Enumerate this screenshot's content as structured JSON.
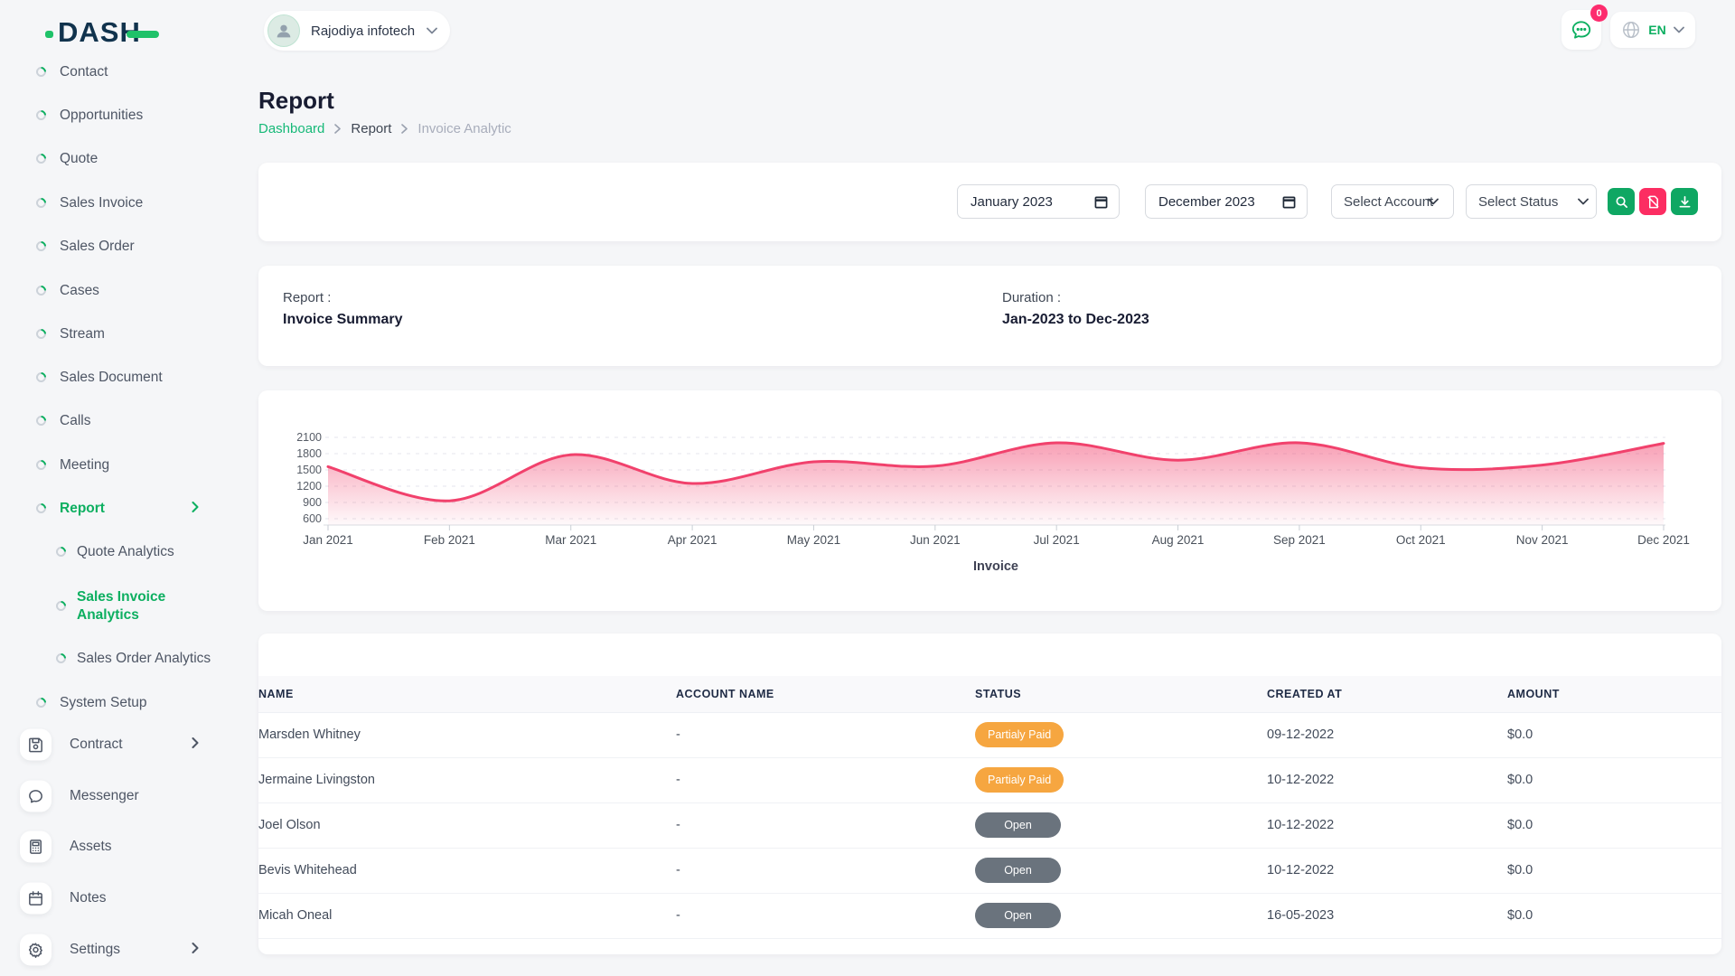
{
  "brand": {
    "logo_text": "DASH"
  },
  "topbar": {
    "workspace": "Rajodiya infotech",
    "notification_count": "0",
    "language": "EN"
  },
  "sidebar": {
    "items": [
      {
        "label": "Contact"
      },
      {
        "label": "Opportunities"
      },
      {
        "label": "Quote"
      },
      {
        "label": "Sales Invoice"
      },
      {
        "label": "Sales Order"
      },
      {
        "label": "Cases"
      },
      {
        "label": "Stream"
      },
      {
        "label": "Sales Document"
      },
      {
        "label": "Calls"
      },
      {
        "label": "Meeting"
      },
      {
        "label": "Report"
      },
      {
        "label": "Quote Analytics"
      },
      {
        "label": "Sales Invoice Analytics"
      },
      {
        "label": "Sales Order Analytics"
      },
      {
        "label": "System Setup"
      },
      {
        "label": "Contract"
      },
      {
        "label": "Messenger"
      },
      {
        "label": "Assets"
      },
      {
        "label": "Notes"
      },
      {
        "label": "Settings"
      }
    ]
  },
  "page": {
    "title": "Report",
    "breadcrumb": {
      "home": "Dashboard",
      "section": "Report",
      "current": "Invoice Analytic"
    }
  },
  "filters": {
    "start_month": "January 2023",
    "end_month": "December 2023",
    "account_placeholder": "Select Account",
    "status_placeholder": "Select Status"
  },
  "summary": {
    "report_label": "Report :",
    "report_value": "Invoice Summary",
    "duration_label": "Duration :",
    "duration_value": "Jan-2023 to Dec-2023"
  },
  "chart_data": {
    "type": "area",
    "title": "Invoice",
    "categories": [
      "Jan 2021",
      "Feb 2021",
      "Mar 2021",
      "Apr 2021",
      "May 2021",
      "Jun 2021",
      "Jul 2021",
      "Aug 2021",
      "Sep 2021",
      "Oct 2021",
      "Nov 2021",
      "Dec 2021"
    ],
    "series": [
      {
        "name": "Invoice",
        "values": [
          1560,
          930,
          1780,
          1250,
          1650,
          1570,
          2000,
          1680,
          2000,
          1540,
          1590,
          1990
        ]
      }
    ],
    "ylim": [
      600,
      2100
    ],
    "yticks": [
      600,
      900,
      1200,
      1500,
      1800,
      2100
    ],
    "grid": "dashed-horizontal",
    "legend_position": "bottom",
    "color": "#f1416c",
    "xlabel": "Invoice",
    "ylabel": ""
  },
  "table": {
    "headers": [
      "NAME",
      "ACCOUNT NAME",
      "STATUS",
      "CREATED AT",
      "AMOUNT"
    ],
    "rows": [
      {
        "name": "Marsden Whitney",
        "account": "-",
        "status": {
          "label": "Partialy Paid",
          "bg": "#f6a640"
        },
        "created": "09-12-2022",
        "amount": "$0.0"
      },
      {
        "name": "Jermaine Livingston",
        "account": "-",
        "status": {
          "label": "Partialy Paid",
          "bg": "#f6a640"
        },
        "created": "10-12-2022",
        "amount": "$0.0"
      },
      {
        "name": "Joel Olson",
        "account": "-",
        "status": {
          "label": "Open",
          "bg": "#6a737d"
        },
        "created": "10-12-2022",
        "amount": "$0.0"
      },
      {
        "name": "Bevis Whitehead",
        "account": "-",
        "status": {
          "label": "Open",
          "bg": "#6a737d"
        },
        "created": "10-12-2022",
        "amount": "$0.0"
      },
      {
        "name": "Micah Oneal",
        "account": "-",
        "status": {
          "label": "Open",
          "bg": "#6a737d"
        },
        "created": "16-05-2023",
        "amount": "$0.0"
      }
    ]
  },
  "colors": {
    "primary_green": "#0caf60",
    "chart_line": "#f1416c",
    "badge_partialy_paid": "#f6a640",
    "badge_open": "#6a737d",
    "pink_button": "#fc2d62"
  }
}
